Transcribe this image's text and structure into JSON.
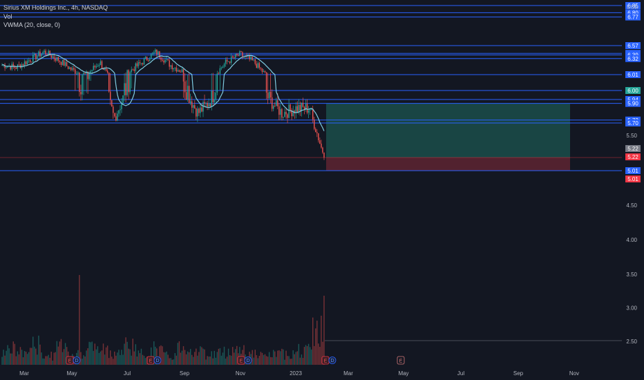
{
  "legend": {
    "symbol_line": "Sirius XM Holdings Inc., 4h, NASDAQ",
    "volume_label": "Vol",
    "indicator_label": "VWMA (20, close, 0)"
  },
  "price_axis": {
    "currency": "USD",
    "ticks": [
      "4.50",
      "4.00",
      "3.50",
      "3.00",
      "2.50"
    ]
  },
  "time_axis": {
    "labels": [
      "Mar",
      "May",
      "Jul",
      "Sep",
      "Nov",
      "2023",
      "Mar",
      "May",
      "Jul",
      "Sep",
      "Nov"
    ]
  },
  "colors": {
    "background": "#131722",
    "up": "#26a69a",
    "down": "#ef5350",
    "level_line": "#2962ff",
    "vwma_line": "#7ecbe0",
    "badge_blue": "#2962ff",
    "badge_red": "#f23645",
    "badge_gray": "#787b86",
    "profit_zone": "#1b4a48",
    "loss_zone": "#5a2431"
  },
  "price_levels": [
    {
      "price": 6.85,
      "label": "6.85"
    },
    {
      "price": 6.8,
      "label": "6.80"
    },
    {
      "price": 6.77,
      "label": "6.77"
    },
    {
      "price": 6.57,
      "label": "6.57"
    },
    {
      "price": 6.42,
      "label": "6.42"
    },
    {
      "price": 6.39,
      "label": "6.39"
    },
    {
      "price": 6.32,
      "label": "6.32"
    },
    {
      "price": 6.01,
      "label": "6.01"
    },
    {
      "price": 6.0,
      "label": "6.00"
    },
    {
      "price": 5.94,
      "label": "5.94"
    },
    {
      "price": 5.9,
      "label": "5.90"
    },
    {
      "price": 5.73,
      "label": "5.73"
    },
    {
      "price": 5.7,
      "label": "5.70"
    },
    {
      "price": 5.01,
      "label": "5.01"
    }
  ],
  "axis_badges": [
    {
      "label": "6.00",
      "color": "teal",
      "price": 6.0
    },
    {
      "label": "5.50",
      "color": "plain",
      "price": 5.5
    },
    {
      "label": "5.22",
      "color": "gray",
      "price": 5.22
    },
    {
      "label": "5.22",
      "color": "red",
      "price": 5.215
    },
    {
      "label": "5.01",
      "color": "blue",
      "price": 5.01
    },
    {
      "label": "5.01",
      "color": "red",
      "price": 4.97
    }
  ],
  "position": {
    "type": "long",
    "entry": 5.22,
    "target": 5.9,
    "stop": 5.01
  },
  "earnings_markers": [
    {
      "label": "E",
      "date_label": "Apr"
    },
    {
      "label": "E",
      "date_label": "Jul"
    },
    {
      "label": "E",
      "date_label": "Oct"
    },
    {
      "label": "E",
      "date_label": "Feb"
    },
    {
      "label": "E",
      "date_label": "Apr"
    }
  ],
  "dividend_marker": "D",
  "chart_data": {
    "type": "candlestick",
    "title": "Sirius XM Holdings Inc., 4h, NASDAQ",
    "ylabel": "USD",
    "ylim": [
      2.3,
      6.9
    ],
    "x_labels": [
      "Mar",
      "May",
      "Jul",
      "Sep",
      "Nov",
      "2023",
      "Mar",
      "May",
      "Jul",
      "Sep",
      "Nov"
    ],
    "price_path": [
      [
        "Feb",
        6.2
      ],
      [
        "Mar",
        6.15
      ],
      [
        "Mar",
        6.3
      ],
      [
        "Apr",
        6.45
      ],
      [
        "Apr",
        6.3
      ],
      [
        "May",
        6.1
      ],
      [
        "May",
        6.0
      ],
      [
        "Jun",
        6.25
      ],
      [
        "Jun",
        5.75
      ],
      [
        "Jul",
        6.05
      ],
      [
        "Jul",
        6.25
      ],
      [
        "Aug",
        6.45
      ],
      [
        "Aug",
        6.2
      ],
      [
        "Sep",
        6.05
      ],
      [
        "Sep",
        5.8
      ],
      [
        "Oct",
        5.95
      ],
      [
        "Oct",
        6.25
      ],
      [
        "Nov",
        6.4
      ],
      [
        "Nov",
        6.25
      ],
      [
        "Dec",
        5.95
      ],
      [
        "Dec",
        5.8
      ],
      [
        "Jan",
        5.85
      ],
      [
        "Jan",
        5.85
      ],
      [
        "Feb",
        5.22
      ]
    ],
    "volume_relative": [
      0.45,
      0.35,
      0.55,
      0.25,
      0.6,
      0.3,
      0.5,
      0.4,
      0.35,
      0.55,
      0.3,
      0.45,
      0.25,
      0.5,
      0.4,
      0.3,
      0.35,
      0.45,
      0.3,
      0.25,
      0.3,
      0.35,
      0.4,
      0.95
    ],
    "series": [
      {
        "name": "VWMA (20, close, 0)"
      }
    ]
  }
}
